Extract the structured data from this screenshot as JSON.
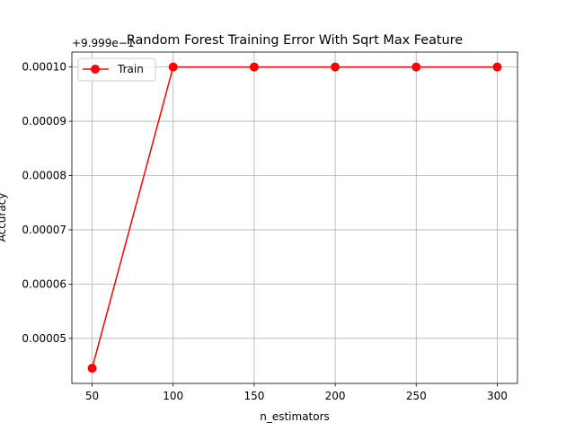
{
  "chart_data": {
    "type": "line",
    "title": "Random Forest Training Error With Sqrt Max Feature",
    "xlabel": "n_estimators",
    "ylabel": "Accuracy",
    "offset_text": "+9.999e−1",
    "x": [
      50,
      100,
      150,
      200,
      250,
      300
    ],
    "series": [
      {
        "name": "Train",
        "color": "#ff0000",
        "marker": "circle",
        "values": [
          4.45e-05,
          0.0001,
          0.0001,
          0.0001,
          0.0001,
          0.0001
        ]
      }
    ],
    "xticks": [
      50,
      100,
      150,
      200,
      250,
      300
    ],
    "xtick_labels": [
      "50",
      "100",
      "150",
      "200",
      "250",
      "300"
    ],
    "yticks": [
      5e-05,
      6e-05,
      7e-05,
      8e-05,
      9e-05,
      0.0001
    ],
    "ytick_labels": [
      "0.00005",
      "0.00006",
      "0.00007",
      "0.00008",
      "0.00009",
      "0.00010"
    ],
    "xlim": [
      37.5,
      312.5
    ],
    "ylim": [
      4.17e-05,
      0.00010275
    ],
    "grid": true,
    "legend": "upper left"
  }
}
